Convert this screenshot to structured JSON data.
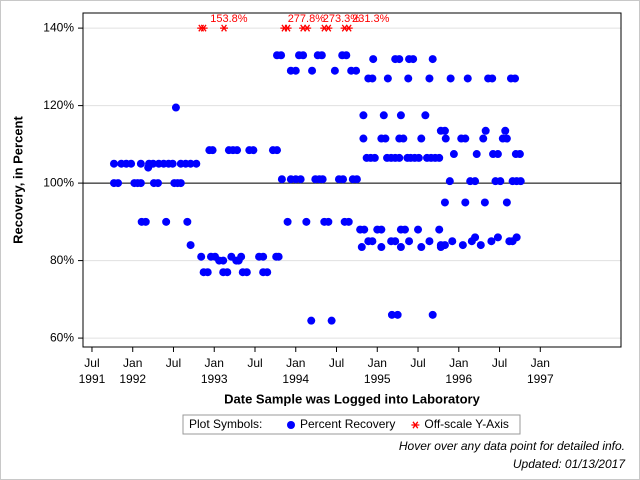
{
  "chart_data": {
    "type": "scatter",
    "x_label": "Date Sample was Logged into Laboratory",
    "y_label": "Recovery, in Percent",
    "xlim": [
      1991.39,
      1997.99
    ],
    "ylim": [
      57.7,
      143.9
    ],
    "xticks": [
      {
        "value": 1991.5,
        "label": "Jul\n1991"
      },
      {
        "value": 1992.0,
        "label": "Jan\n1992"
      },
      {
        "value": 1992.5,
        "label": "Jul"
      },
      {
        "value": 1993.0,
        "label": "Jan\n1993"
      },
      {
        "value": 1993.5,
        "label": "Jul"
      },
      {
        "value": 1994.0,
        "label": "Jan\n1994"
      },
      {
        "value": 1994.5,
        "label": "Jul"
      },
      {
        "value": 1995.0,
        "label": "Jan\n1995"
      },
      {
        "value": 1995.5,
        "label": "Jul"
      },
      {
        "value": 1996.0,
        "label": "Jan\n1996"
      },
      {
        "value": 1996.5,
        "label": "Jul"
      },
      {
        "value": 1997.0,
        "label": "Jan\n1997"
      }
    ],
    "yticks": [
      {
        "value": 60,
        "label": "60%"
      },
      {
        "value": 80,
        "label": "80%"
      },
      {
        "value": 100,
        "label": "100%"
      },
      {
        "value": 120,
        "label": "120%"
      },
      {
        "value": 140,
        "label": "140%"
      }
    ],
    "grid": true,
    "reference_line": 100,
    "legend_title": "Plot Symbols:",
    "legend": "bottom",
    "series": [
      {
        "name": "Percent Recovery",
        "color": "#0000ff",
        "marker": "circle",
        "x": [
          1991.77,
          1991.86,
          1991.92,
          1991.98,
          1992.1,
          1992.2,
          1992.25,
          1992.32,
          1992.38,
          1992.44,
          1992.49,
          1992.59,
          1992.65,
          1992.71,
          1992.78,
          1991.77,
          1991.82,
          1992.02,
          1992.06,
          1992.1,
          1992.26,
          1992.31,
          1992.51,
          1992.55,
          1992.59,
          1992.11,
          1992.16,
          1992.41,
          1992.67,
          1992.53,
          1992.19,
          1992.71,
          1992.94,
          1992.98,
          1993.18,
          1993.23,
          1993.28,
          1993.43,
          1993.48,
          1993.72,
          1993.77,
          1992.84,
          1992.96,
          1993.01,
          1993.21,
          1993.33,
          1993.55,
          1993.6,
          1993.76,
          1993.79,
          1992.87,
          1992.92,
          1993.11,
          1993.16,
          1993.35,
          1993.4,
          1993.6,
          1993.65,
          1993.06,
          1993.11,
          1993.27,
          1993.3,
          1993.77,
          1993.82,
          1994.04,
          1994.09,
          1994.27,
          1994.32,
          1994.57,
          1994.62,
          1993.94,
          1994.0,
          1994.2,
          1994.48,
          1994.68,
          1994.74,
          1993.83,
          1993.94,
          1994.0,
          1994.06,
          1994.24,
          1994.29,
          1994.33,
          1994.53,
          1994.58,
          1994.7,
          1994.75,
          1993.9,
          1994.13,
          1994.35,
          1994.4,
          1994.6,
          1994.65,
          1994.19,
          1994.44,
          1994.95,
          1995.22,
          1995.27,
          1995.39,
          1995.44,
          1995.68,
          1994.89,
          1994.94,
          1995.13,
          1995.38,
          1995.64,
          1994.83,
          1995.08,
          1995.29,
          1995.59,
          1994.83,
          1995.05,
          1995.1,
          1995.27,
          1995.32,
          1995.54,
          1994.87,
          1994.92,
          1994.97,
          1995.12,
          1995.17,
          1995.22,
          1995.27,
          1995.37,
          1995.41,
          1995.46,
          1995.51,
          1995.61,
          1995.66,
          1995.71,
          1995.76,
          1994.79,
          1994.84,
          1995.0,
          1995.05,
          1995.29,
          1995.34,
          1995.5,
          1995.76,
          1994.89,
          1994.94,
          1995.17,
          1995.22,
          1995.39,
          1995.64,
          1994.81,
          1995.05,
          1995.29,
          1995.54,
          1995.78,
          1995.18,
          1995.25,
          1995.68,
          1995.9,
          1996.11,
          1996.36,
          1996.41,
          1996.64,
          1996.69,
          1995.78,
          1995.83,
          1996.33,
          1996.57,
          1995.84,
          1996.03,
          1996.08,
          1996.3,
          1996.54,
          1996.59,
          1995.94,
          1996.22,
          1996.42,
          1996.48,
          1996.7,
          1996.75,
          1995.89,
          1996.14,
          1996.2,
          1996.45,
          1996.51,
          1996.66,
          1996.71,
          1996.76,
          1995.83,
          1996.08,
          1996.32,
          1996.59,
          1995.92,
          1996.16,
          1996.4,
          1996.62,
          1996.66,
          1995.78,
          1995.83,
          1996.05,
          1996.27,
          1996.2,
          1996.48,
          1996.71
        ],
        "values": [
          105,
          105,
          105,
          105,
          105,
          105,
          105,
          105,
          105,
          105,
          105,
          105,
          105,
          105,
          105,
          100,
          100,
          100,
          100,
          100,
          100,
          100,
          100,
          100,
          100,
          90,
          90,
          90,
          90,
          119.5,
          104,
          84,
          108.5,
          108.5,
          108.5,
          108.5,
          108.5,
          108.5,
          108.5,
          108.5,
          108.5,
          81,
          81,
          81,
          81,
          81,
          81,
          81,
          81,
          81,
          77,
          77,
          77,
          77,
          77,
          77,
          77,
          77,
          80,
          80,
          80,
          80,
          133,
          133,
          133,
          133,
          133,
          133,
          133,
          133,
          129,
          129,
          129,
          129,
          129,
          129,
          101,
          101,
          101,
          101,
          101,
          101,
          101,
          101,
          101,
          101,
          101,
          90,
          90,
          90,
          90,
          90,
          90,
          64.5,
          64.5,
          132,
          132,
          132,
          132,
          132,
          132,
          127,
          127,
          127,
          127,
          127,
          117.5,
          117.5,
          117.5,
          117.5,
          111.5,
          111.5,
          111.5,
          111.5,
          111.5,
          111.5,
          106.5,
          106.5,
          106.5,
          106.5,
          106.5,
          106.5,
          106.5,
          106.5,
          106.5,
          106.5,
          106.5,
          106.5,
          106.5,
          106.5,
          106.5,
          88,
          88,
          88,
          88,
          88,
          88,
          88,
          88,
          85,
          85,
          85,
          85,
          85,
          85,
          83.5,
          83.5,
          83.5,
          83.5,
          83.5,
          66,
          66,
          66,
          127,
          127,
          127,
          127,
          127,
          127,
          113.5,
          113.5,
          113.5,
          113.5,
          111.5,
          111.5,
          111.5,
          111.5,
          111.5,
          111.5,
          107.5,
          107.5,
          107.5,
          107.5,
          107.5,
          107.5,
          100.5,
          100.5,
          100.5,
          100.5,
          100.5,
          100.5,
          100.5,
          100.5,
          95,
          95,
          95,
          95,
          85,
          85,
          85,
          85,
          85,
          84,
          84,
          84,
          84,
          86,
          86,
          86
        ]
      },
      {
        "name": "Off-scale Y-Axis",
        "color": "#ff0000",
        "marker": "asterisk",
        "x": [
          1992.84,
          1992.87,
          1993.12,
          1993.86,
          1993.9,
          1994.09,
          1994.14,
          1994.35,
          1994.4,
          1994.6,
          1994.65
        ],
        "values": [
          140,
          140,
          140,
          140,
          140,
          140,
          140,
          140,
          140,
          140,
          140
        ]
      }
    ],
    "annotations": [
      {
        "text": "153.8%",
        "x": 1993.18
      },
      {
        "text": "277.8%",
        "x": 1994.13
      },
      {
        "text": "273.3%",
        "x": 1994.56
      },
      {
        "text": "231.3%",
        "x": 1994.92
      }
    ],
    "footnotes": [
      "Hover over any data point for detailed info.",
      "Updated: 01/13/2017"
    ]
  }
}
